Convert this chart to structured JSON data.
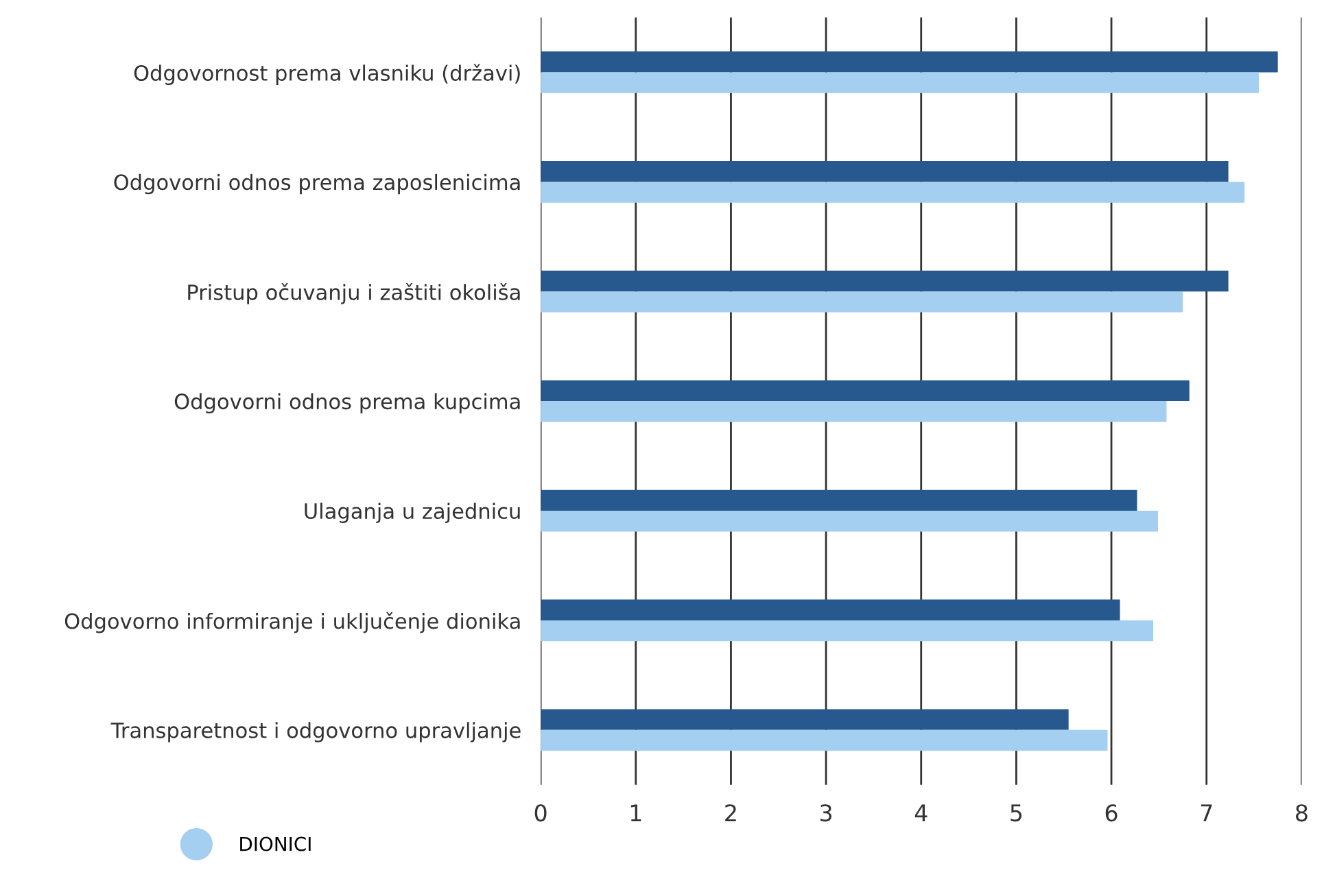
{
  "chart_data": {
    "type": "bar",
    "orientation": "horizontal",
    "categories": [
      "Odgovornost prema vlasniku (državi)",
      "Odgovorni odnos prema zaposlenicima",
      "Pristup očuvanju i zaštiti okoliša",
      "Odgovorni odnos prema kupcima",
      "Ulaganja u zajednicu",
      "Odgovorno informiranje i uključenje dionika",
      "Transparetnost i odgovorno upravljanje"
    ],
    "series": [
      {
        "color": "#27598e",
        "values": [
          7.75,
          7.23,
          7.23,
          6.82,
          6.27,
          6.09,
          5.55
        ]
      },
      {
        "name": "DIONICI",
        "color": "#a5cff0",
        "values": [
          7.55,
          7.4,
          6.75,
          6.58,
          6.49,
          6.44,
          5.96
        ]
      }
    ],
    "xlim": [
      0,
      8
    ],
    "xticks": [
      0,
      1,
      2,
      3,
      4,
      5,
      6,
      7,
      8
    ],
    "grid": "x",
    "legend": "bottom left"
  }
}
